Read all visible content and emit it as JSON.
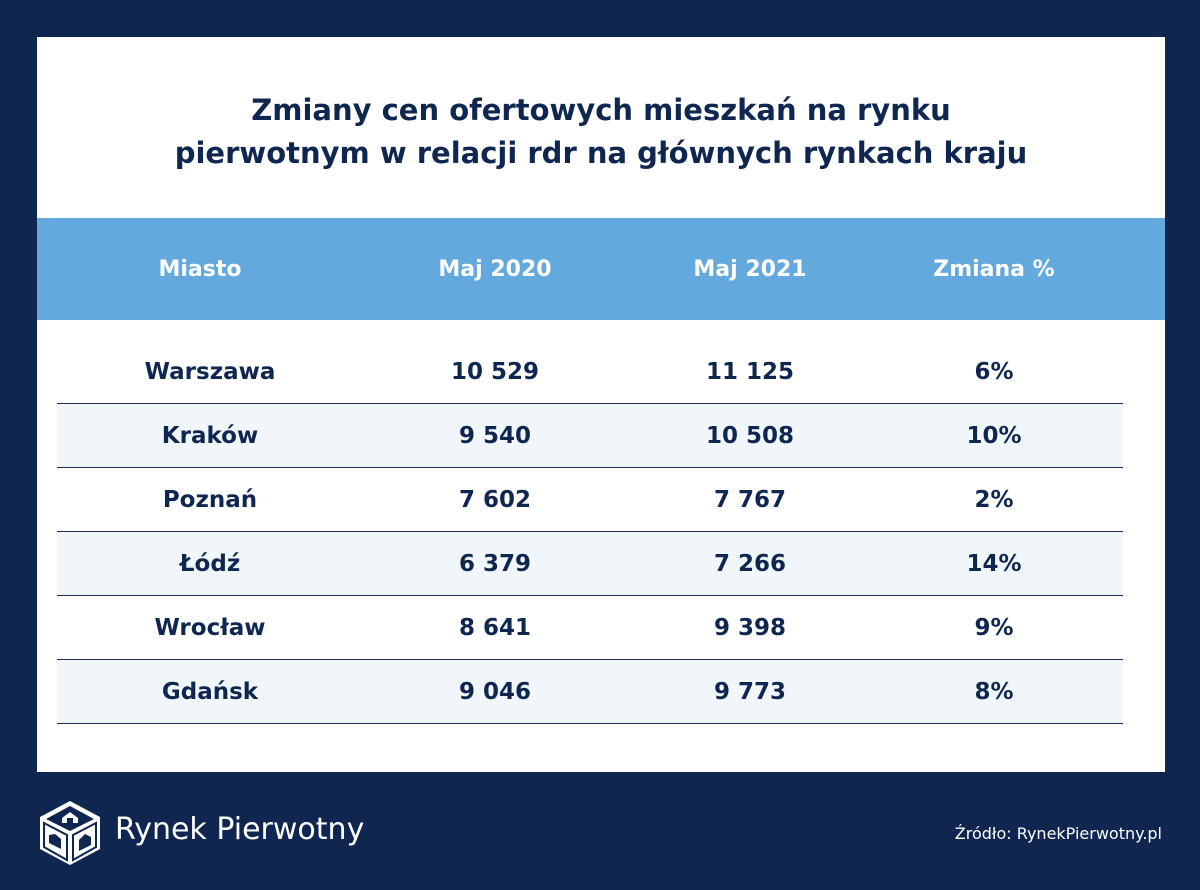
{
  "title_lines": [
    "Zmiany cen ofertowych mieszkań na rynku",
    "pierwotnym w relacji rdr na głównych rynkach kraju"
  ],
  "chart_data": {
    "type": "table",
    "columns": [
      "Miasto",
      "Maj 2020",
      "Maj 2021",
      "Zmiana %"
    ],
    "rows": [
      {
        "city": "Warszawa",
        "may_2020": "10 529",
        "may_2021": "11 125",
        "change": "6%"
      },
      {
        "city": "Kraków",
        "may_2020": "9 540",
        "may_2021": "10 508",
        "change": "10%"
      },
      {
        "city": "Poznań",
        "may_2020": "7 602",
        "may_2021": "7 767",
        "change": "2%"
      },
      {
        "city": "Łódź",
        "may_2020": "6 379",
        "may_2021": "7 266",
        "change": "14%"
      },
      {
        "city": "Wrocław",
        "may_2020": "8 641",
        "may_2021": "9 398",
        "change": "9%"
      },
      {
        "city": "Gdańsk",
        "may_2020": "9 046",
        "may_2021": "9 773",
        "change": "8%"
      }
    ]
  },
  "footer": {
    "brand": "Rynek Pierwotny",
    "source": "Źródło: RynekPierwotny.pl",
    "logo_icon": "rynek-pierwotny-logo-icon"
  },
  "colors": {
    "background": "#0f2750",
    "header": "#64a9dd",
    "text": "#0f2750",
    "row_alt": "#f1f6fb"
  }
}
